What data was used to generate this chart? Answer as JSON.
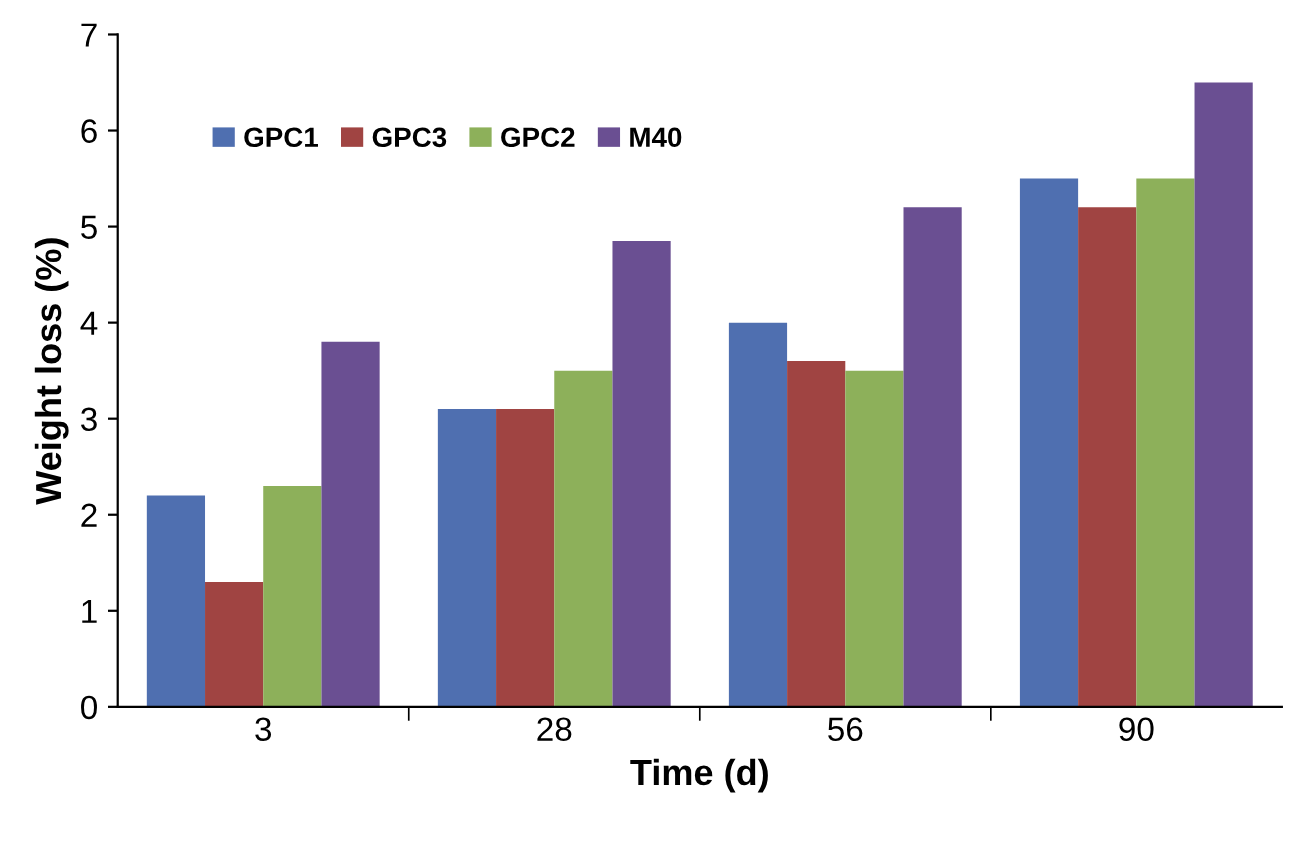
{
  "chart_data": {
    "type": "bar",
    "xlabel": "Time (d)",
    "ylabel": "Weight loss (%)",
    "categories": [
      "3",
      "28",
      "56",
      "90"
    ],
    "series": [
      {
        "name": "GPC1",
        "color": "#4f6fb0",
        "values": [
          2.2,
          3.1,
          4.0,
          5.5
        ]
      },
      {
        "name": "GPC3",
        "color": "#a04442",
        "values": [
          1.3,
          3.1,
          3.6,
          5.2
        ]
      },
      {
        "name": "GPC2",
        "color": "#8db05a",
        "values": [
          2.3,
          3.5,
          3.5,
          5.5
        ]
      },
      {
        "name": "M40",
        "color": "#6a4f92",
        "values": [
          3.8,
          4.85,
          5.2,
          6.5
        ]
      }
    ],
    "ylim": [
      0,
      7
    ],
    "yticks": [
      0,
      1,
      2,
      3,
      4,
      5,
      6,
      7
    ],
    "grid": false,
    "legend": "top left"
  }
}
